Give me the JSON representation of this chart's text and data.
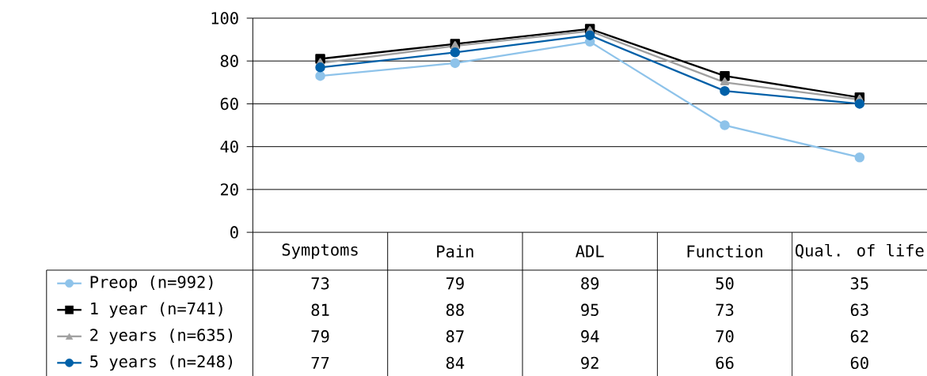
{
  "chart_data": {
    "type": "line",
    "categories": [
      "Symptoms",
      "Pain",
      "ADL",
      "Function",
      "Qual. of life"
    ],
    "series": [
      {
        "name": "Preop (n=992)",
        "color": "#8ec3ea",
        "marker": "circle",
        "values": [
          73,
          79,
          89,
          50,
          35
        ]
      },
      {
        "name": "1 year (n=741)",
        "color": "#000000",
        "marker": "square",
        "values": [
          81,
          88,
          95,
          73,
          63
        ]
      },
      {
        "name": "2 years (n=635)",
        "color": "#a0a0a0",
        "marker": "triangle",
        "values": [
          79,
          87,
          94,
          70,
          62
        ]
      },
      {
        "name": "5 years (n=248)",
        "color": "#0060a8",
        "marker": "circle",
        "values": [
          77,
          84,
          92,
          66,
          60
        ]
      }
    ],
    "ylim": [
      0,
      100
    ],
    "yticks": [
      0,
      20,
      40,
      60,
      80,
      100
    ],
    "grid": "y",
    "legend": "bottom left",
    "data_labels": true
  }
}
